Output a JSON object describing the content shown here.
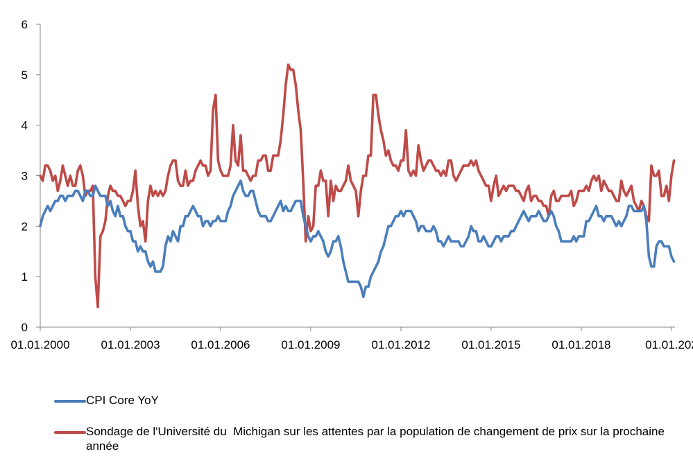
{
  "chart_data": {
    "type": "line",
    "title": "",
    "xlabel": "",
    "ylabel": "",
    "ylim": [
      0,
      6
    ],
    "yticks": [
      "0",
      "1",
      "2",
      "3",
      "4",
      "5",
      "6"
    ],
    "xlim": [
      2000.0,
      2021.15
    ],
    "xticks": [
      {
        "value": 2000,
        "label": "01.01.2000"
      },
      {
        "value": 2003,
        "label": "01.01.2003"
      },
      {
        "value": 2006,
        "label": "01.01.2006"
      },
      {
        "value": 2009,
        "label": "01.01.2009"
      },
      {
        "value": 2012,
        "label": "01.01.2012"
      },
      {
        "value": 2015,
        "label": "01.01.2015"
      },
      {
        "value": 2018,
        "label": "01.01.2018"
      },
      {
        "value": 2021,
        "label": "01.01.202"
      }
    ],
    "grid": false,
    "legend_position": "bottom",
    "x_start": "2000-01",
    "x_frequency": "monthly",
    "series": [
      {
        "name": "CPI Core YoY",
        "color": "#4a7ebb",
        "values": [
          2.0,
          2.2,
          2.3,
          2.4,
          2.3,
          2.4,
          2.5,
          2.5,
          2.6,
          2.6,
          2.5,
          2.6,
          2.6,
          2.6,
          2.7,
          2.7,
          2.6,
          2.5,
          2.7,
          2.7,
          2.6,
          2.6,
          2.8,
          2.7,
          2.6,
          2.6,
          2.6,
          2.4,
          2.5,
          2.3,
          2.2,
          2.4,
          2.2,
          2.2,
          2.0,
          1.9,
          1.9,
          1.7,
          1.7,
          1.5,
          1.6,
          1.5,
          1.5,
          1.3,
          1.2,
          1.3,
          1.1,
          1.1,
          1.1,
          1.2,
          1.6,
          1.8,
          1.7,
          1.9,
          1.8,
          1.7,
          2.0,
          2.0,
          2.2,
          2.2,
          2.3,
          2.4,
          2.3,
          2.2,
          2.2,
          2.0,
          2.1,
          2.1,
          2.0,
          2.1,
          2.1,
          2.2,
          2.1,
          2.1,
          2.1,
          2.3,
          2.4,
          2.6,
          2.7,
          2.8,
          2.9,
          2.7,
          2.6,
          2.6,
          2.7,
          2.7,
          2.5,
          2.3,
          2.2,
          2.2,
          2.2,
          2.1,
          2.1,
          2.2,
          2.3,
          2.4,
          2.5,
          2.3,
          2.4,
          2.3,
          2.3,
          2.4,
          2.5,
          2.5,
          2.5,
          2.2,
          2.0,
          1.8,
          1.7,
          1.8,
          1.8,
          1.9,
          1.8,
          1.7,
          1.5,
          1.4,
          1.5,
          1.7,
          1.7,
          1.8,
          1.6,
          1.3,
          1.1,
          0.9,
          0.9,
          0.9,
          0.9,
          0.9,
          0.8,
          0.6,
          0.8,
          0.8,
          1.0,
          1.1,
          1.2,
          1.3,
          1.5,
          1.6,
          1.8,
          2.0,
          2.0,
          2.1,
          2.2,
          2.2,
          2.3,
          2.2,
          2.3,
          2.3,
          2.3,
          2.2,
          2.1,
          1.9,
          2.0,
          2.0,
          1.9,
          1.9,
          1.9,
          2.0,
          1.9,
          1.7,
          1.7,
          1.6,
          1.7,
          1.8,
          1.7,
          1.7,
          1.7,
          1.7,
          1.6,
          1.6,
          1.7,
          1.8,
          2.0,
          1.9,
          1.9,
          1.7,
          1.7,
          1.8,
          1.7,
          1.6,
          1.6,
          1.7,
          1.8,
          1.8,
          1.7,
          1.8,
          1.8,
          1.8,
          1.9,
          1.9,
          2.0,
          2.1,
          2.2,
          2.3,
          2.2,
          2.1,
          2.2,
          2.2,
          2.2,
          2.3,
          2.2,
          2.1,
          2.1,
          2.2,
          2.3,
          2.2,
          2.0,
          1.9,
          1.7,
          1.7,
          1.7,
          1.7,
          1.7,
          1.8,
          1.7,
          1.8,
          1.8,
          1.8,
          2.1,
          2.1,
          2.2,
          2.3,
          2.4,
          2.2,
          2.2,
          2.1,
          2.2,
          2.2,
          2.2,
          2.1,
          2.0,
          2.1,
          2.0,
          2.1,
          2.2,
          2.4,
          2.4,
          2.3,
          2.3,
          2.3,
          2.3,
          2.4,
          2.1,
          1.4,
          1.2,
          1.2,
          1.6,
          1.7,
          1.7,
          1.6,
          1.6,
          1.6,
          1.4,
          1.3
        ]
      },
      {
        "name": "Sondage de l'Université du  Michigan sur les attentes par la population de changement de prix sur la prochaine année",
        "color": "#be4b48",
        "values": [
          3.0,
          2.9,
          3.2,
          3.2,
          3.1,
          2.9,
          3.0,
          2.7,
          2.9,
          3.2,
          3.0,
          2.8,
          3.0,
          2.8,
          2.8,
          3.1,
          3.2,
          3.0,
          2.6,
          2.7,
          2.7,
          2.8,
          1.0,
          0.4,
          1.8,
          1.9,
          2.1,
          2.6,
          2.8,
          2.7,
          2.7,
          2.6,
          2.6,
          2.5,
          2.4,
          2.5,
          2.5,
          2.7,
          3.1,
          2.4,
          2.0,
          2.1,
          1.7,
          2.5,
          2.8,
          2.6,
          2.7,
          2.6,
          2.7,
          2.6,
          2.7,
          3.0,
          3.2,
          3.3,
          3.3,
          2.9,
          2.8,
          2.8,
          3.1,
          2.8,
          2.9,
          2.9,
          3.1,
          3.2,
          3.3,
          3.2,
          3.2,
          3.0,
          3.1,
          4.3,
          4.6,
          3.3,
          3.1,
          3.0,
          3.0,
          3.0,
          3.2,
          4.0,
          3.3,
          3.2,
          3.8,
          3.1,
          3.1,
          3.0,
          2.9,
          3.0,
          3.0,
          3.3,
          3.3,
          3.4,
          3.4,
          3.1,
          3.1,
          3.4,
          3.4,
          3.4,
          3.7,
          4.2,
          4.8,
          5.2,
          5.1,
          5.1,
          4.8,
          4.3,
          3.9,
          2.9,
          1.7,
          2.2,
          1.9,
          2.0,
          2.8,
          2.8,
          3.1,
          2.9,
          2.9,
          2.2,
          2.9,
          2.5,
          2.8,
          2.7,
          2.7,
          2.8,
          2.9,
          3.2,
          2.9,
          2.8,
          2.7,
          2.2,
          2.7,
          3.0,
          3.0,
          3.4,
          3.4,
          4.6,
          4.6,
          4.2,
          3.9,
          3.7,
          3.4,
          3.5,
          3.3,
          3.2,
          3.2,
          3.1,
          3.3,
          3.3,
          3.9,
          3.1,
          3.0,
          3.1,
          3.0,
          3.6,
          3.3,
          3.1,
          3.2,
          3.3,
          3.3,
          3.2,
          3.1,
          3.1,
          3.0,
          3.1,
          3.0,
          3.3,
          3.3,
          3.0,
          2.9,
          3.0,
          3.1,
          3.2,
          3.2,
          3.2,
          3.3,
          3.2,
          3.3,
          3.1,
          3.0,
          2.9,
          2.8,
          2.8,
          2.5,
          2.8,
          3.0,
          2.6,
          2.7,
          2.8,
          2.7,
          2.8,
          2.8,
          2.8,
          2.7,
          2.7,
          2.6,
          2.5,
          2.7,
          2.8,
          2.5,
          2.6,
          2.6,
          2.5,
          2.5,
          2.4,
          2.4,
          2.2,
          2.6,
          2.7,
          2.5,
          2.5,
          2.6,
          2.6,
          2.6,
          2.6,
          2.7,
          2.4,
          2.5,
          2.7,
          2.7,
          2.7,
          2.8,
          2.7,
          2.9,
          3.0,
          2.9,
          3.0,
          2.7,
          2.9,
          2.8,
          2.7,
          2.7,
          2.6,
          2.5,
          2.5,
          2.9,
          2.7,
          2.6,
          2.7,
          2.8,
          2.5,
          2.4,
          2.3,
          2.5,
          2.4,
          2.2,
          2.1,
          3.2,
          3.0,
          3.0,
          3.1,
          2.6,
          2.6,
          2.8,
          2.5,
          3.0,
          3.3
        ]
      }
    ]
  },
  "legend": {
    "items": [
      {
        "label": "CPI Core YoY",
        "color": "#4a7ebb"
      },
      {
        "label": "Sondage de l'Université du  Michigan sur les attentes par la population de changement de prix sur la prochaine année",
        "color": "#be4b48"
      }
    ]
  }
}
